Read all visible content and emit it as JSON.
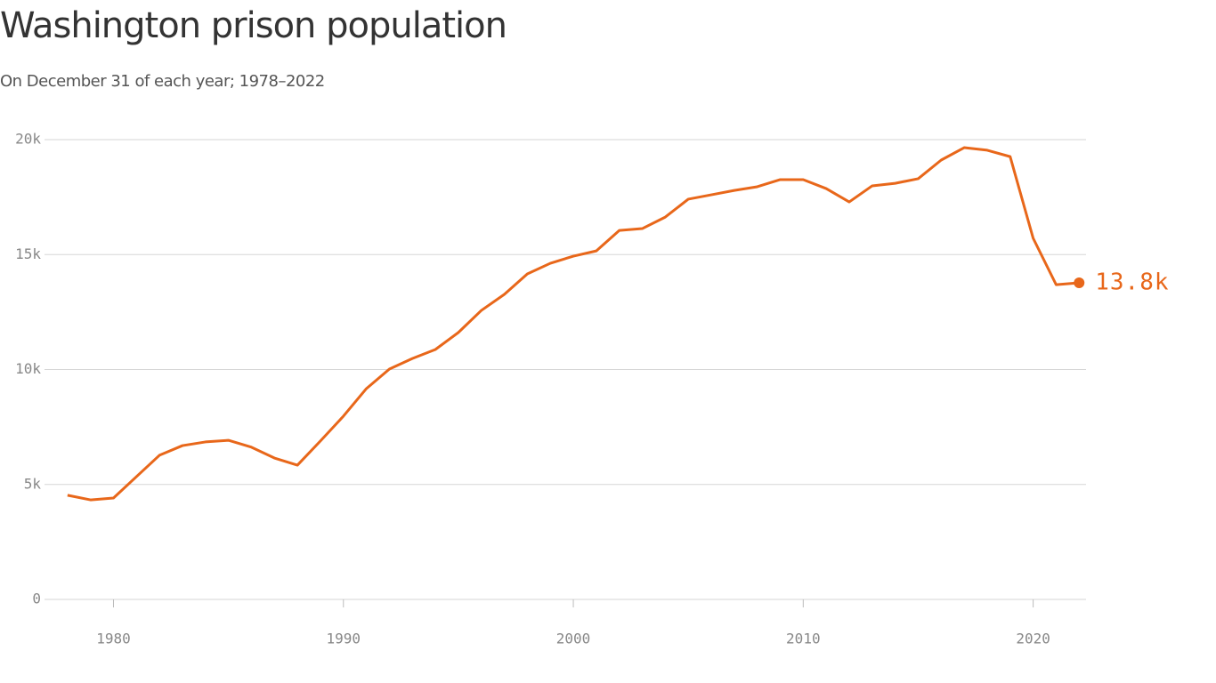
{
  "chart_data": {
    "type": "line",
    "title": "Washington prison population",
    "subtitle": "On December 31 of each year; 1978–2022",
    "x": [
      1978,
      1979,
      1980,
      1981,
      1982,
      1983,
      1984,
      1985,
      1986,
      1987,
      1988,
      1989,
      1990,
      1991,
      1992,
      1993,
      1994,
      1995,
      1996,
      1997,
      1998,
      1999,
      2000,
      2001,
      2002,
      2003,
      2004,
      2005,
      2006,
      2007,
      2008,
      2009,
      2010,
      2011,
      2012,
      2013,
      2014,
      2015,
      2016,
      2017,
      2018,
      2019,
      2020,
      2021,
      2022
    ],
    "values": [
      4530,
      4330,
      4410,
      5340,
      6270,
      6690,
      6850,
      6920,
      6620,
      6150,
      5840,
      6890,
      7970,
      9170,
      10020,
      10480,
      10870,
      11610,
      12570,
      13270,
      14160,
      14620,
      14930,
      15160,
      16050,
      16130,
      16630,
      17410,
      17600,
      17790,
      17950,
      18260,
      18260,
      17870,
      17290,
      17990,
      18100,
      18300,
      19110,
      19650,
      19540,
      19260,
      15710,
      13690,
      13770
    ],
    "value_labels": [
      null,
      null,
      null,
      null,
      null,
      null,
      null,
      null,
      null,
      null,
      null,
      null,
      null,
      null,
      null,
      null,
      null,
      null,
      null,
      null,
      null,
      null,
      null,
      null,
      null,
      null,
      null,
      null,
      null,
      null,
      null,
      null,
      null,
      null,
      null,
      null,
      null,
      null,
      null,
      null,
      null,
      null,
      null,
      null,
      "13.8k"
    ],
    "color": "#e8671a",
    "xlim": [
      1977,
      2022.3
    ],
    "xticks": [
      1980,
      1990,
      2000,
      2010,
      2020
    ],
    "ylim": [
      0,
      20000
    ],
    "yticks": [
      0,
      {
        "value": 5000,
        "label": "5k"
      },
      {
        "value": 10000,
        "label": "10k"
      },
      {
        "value": 15000,
        "label": "15k"
      },
      {
        "value": 20000,
        "label": "20k"
      }
    ],
    "grid": true
  }
}
